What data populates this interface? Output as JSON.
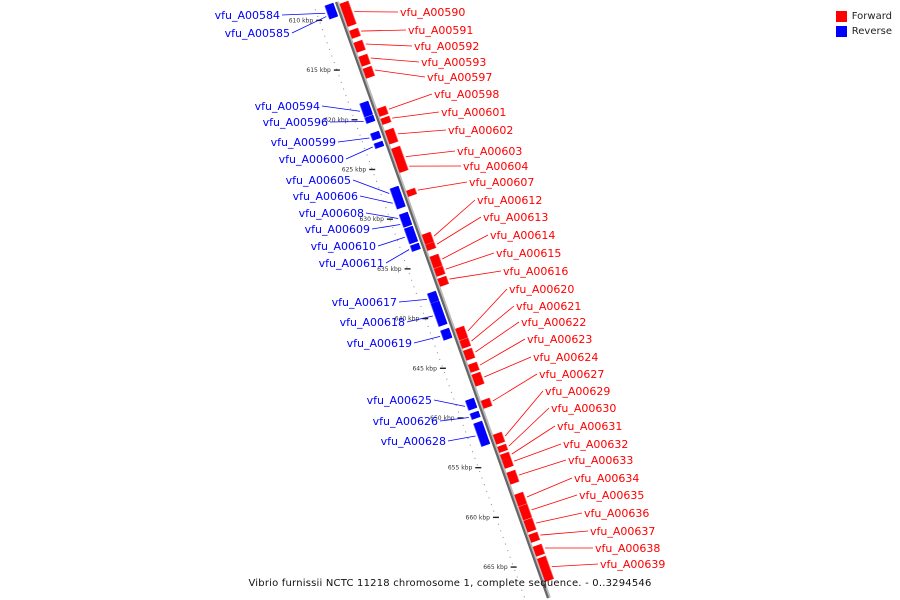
{
  "legend": {
    "forward_label": "Forward",
    "reverse_label": "Reverse",
    "forward_color": "#ff0000",
    "reverse_color": "#0000ff"
  },
  "caption": "Vibrio furnissii NCTC 11218 chromosome 1, complete sequence. - 0..3294546",
  "ticks": [
    "610 kbp",
    "615 kbp",
    "620 kbp",
    "625 kbp",
    "630 kbp",
    "635 kbp",
    "640 kbp",
    "645 kbp",
    "650 kbp",
    "655 kbp",
    "660 kbp",
    "665 kbp"
  ],
  "reverse_genes": [
    "vfu_A00584",
    "vfu_A00585",
    "vfu_A00594",
    "vfu_A00596",
    "vfu_A00599",
    "vfu_A00600",
    "vfu_A00605",
    "vfu_A00606",
    "vfu_A00608",
    "vfu_A00609",
    "vfu_A00610",
    "vfu_A00611",
    "vfu_A00617",
    "vfu_A00618",
    "vfu_A00619",
    "vfu_A00625",
    "vfu_A00626",
    "vfu_A00628"
  ],
  "forward_genes": [
    "vfu_A00590",
    "vfu_A00591",
    "vfu_A00592",
    "vfu_A00593",
    "vfu_A00597",
    "vfu_A00598",
    "vfu_A00601",
    "vfu_A00602",
    "vfu_A00603",
    "vfu_A00604",
    "vfu_A00607",
    "vfu_A00612",
    "vfu_A00613",
    "vfu_A00614",
    "vfu_A00615",
    "vfu_A00616",
    "vfu_A00620",
    "vfu_A00621",
    "vfu_A00622",
    "vfu_A00623",
    "vfu_A00624",
    "vfu_A00627",
    "vfu_A00629",
    "vfu_A00630",
    "vfu_A00631",
    "vfu_A00632",
    "vfu_A00633",
    "vfu_A00634",
    "vfu_A00635",
    "vfu_A00636",
    "vfu_A00637",
    "vfu_A00638",
    "vfu_A00639"
  ]
}
